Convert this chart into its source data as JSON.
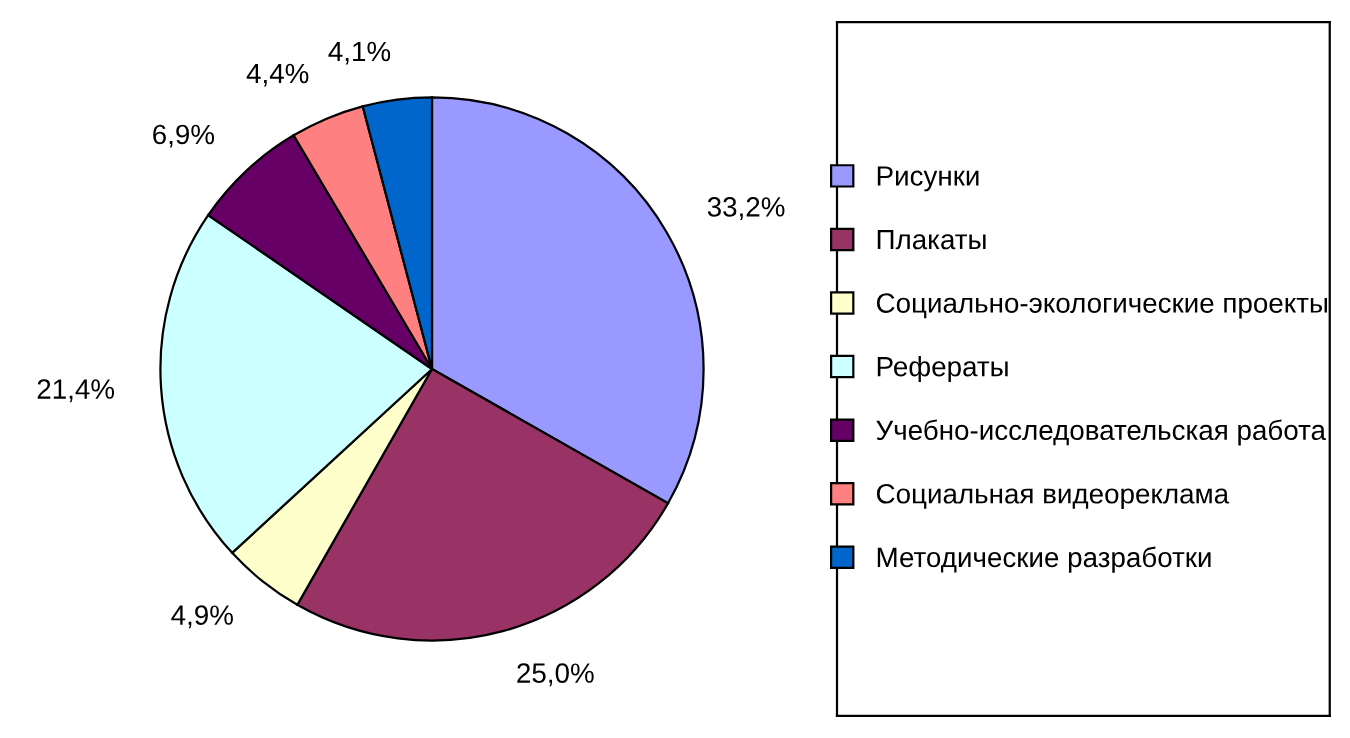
{
  "chart_data": {
    "type": "pie",
    "categories": [
      "Рисунки",
      "Плакаты",
      "Социально-экологические проекты",
      "Рефераты",
      "Учебно-исследовательская работа",
      "Социальная видеореклама",
      "Методические разработки"
    ],
    "values": [
      33.2,
      25.0,
      4.9,
      21.4,
      6.9,
      4.4,
      4.1
    ],
    "value_labels": [
      "33,2%",
      "25,0%",
      "4,9%",
      "21,4%",
      "6,9%",
      "4,4%",
      "4,1%"
    ],
    "colors": [
      "#9999ff",
      "#993366",
      "#ffffcc",
      "#ccffff",
      "#660066",
      "#ff8080",
      "#0066cc"
    ],
    "legend": "right"
  }
}
